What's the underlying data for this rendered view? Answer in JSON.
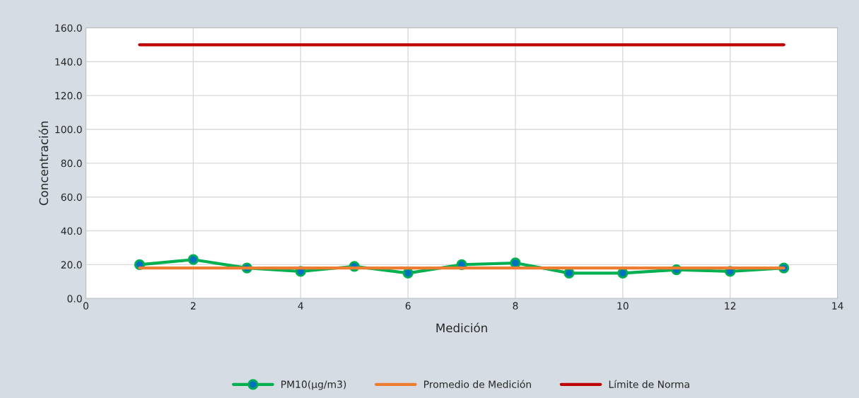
{
  "chart_data": {
    "type": "line",
    "xlabel": "Medición",
    "ylabel": "Concentración",
    "x": [
      1,
      2,
      3,
      4,
      5,
      6,
      7,
      8,
      9,
      10,
      11,
      12,
      13
    ],
    "series": [
      {
        "name": "PM10(µg/m3)",
        "color": "#00b050",
        "marker": "circle",
        "values": [
          20,
          23,
          18,
          16,
          19,
          15,
          20,
          21,
          15,
          15,
          17,
          16,
          18
        ]
      },
      {
        "name": "Promedio de Medición",
        "color": "#ed7d31",
        "marker": "none",
        "values": [
          18,
          18,
          18,
          18,
          18,
          18,
          18,
          18,
          18,
          18,
          18,
          18,
          18
        ]
      },
      {
        "name": "Límite de Norma",
        "color": "#c00000",
        "marker": "none",
        "values": [
          150,
          150,
          150,
          150,
          150,
          150,
          150,
          150,
          150,
          150,
          150,
          150,
          150
        ]
      }
    ],
    "xlim": [
      0,
      14
    ],
    "xticks": [
      0,
      2,
      4,
      6,
      8,
      10,
      12,
      14
    ],
    "ylim": [
      0,
      160
    ],
    "yticks": [
      {
        "value": 0,
        "label": "0.0"
      },
      {
        "value": 20,
        "label": "20.0"
      },
      {
        "value": 40,
        "label": "40.0"
      },
      {
        "value": 60,
        "label": "60.0"
      },
      {
        "value": 80,
        "label": "80.0"
      },
      {
        "value": 100,
        "label": "100.0"
      },
      {
        "value": 120,
        "label": "120.0"
      },
      {
        "value": 140,
        "label": "140.0"
      },
      {
        "value": 160,
        "label": "160.0"
      }
    ],
    "grid": true,
    "legend": "bottom"
  }
}
